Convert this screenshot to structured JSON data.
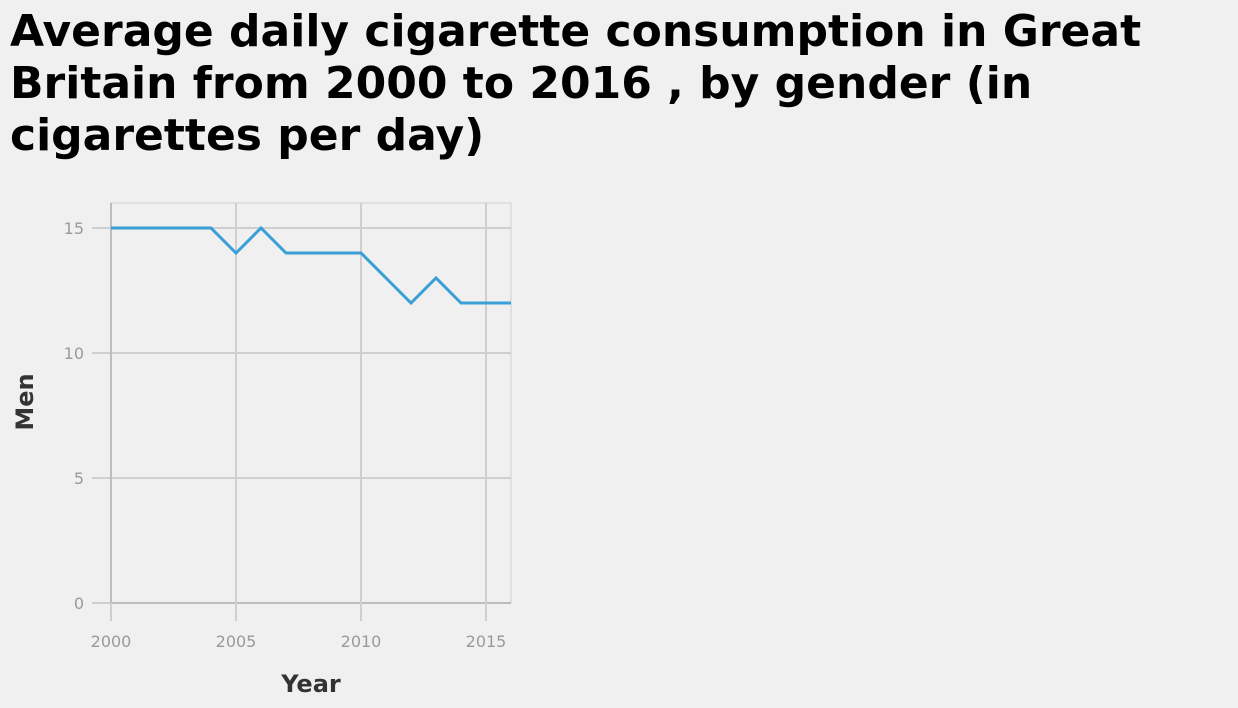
{
  "chart_data": {
    "type": "line",
    "title": "Average daily cigarette consumption in Great Britain from 2000 to 2016 , by gender (in cigarettes per day)",
    "xlabel": "Year",
    "ylabel": "Men",
    "xlim": [
      2000,
      2016
    ],
    "ylim": [
      0,
      16
    ],
    "x_ticks": [
      2000,
      2005,
      2010,
      2015
    ],
    "y_ticks": [
      0,
      5,
      10,
      15
    ],
    "grid": true,
    "series": [
      {
        "color": "#3a9fd6",
        "x": [
          2000,
          2001,
          2002,
          2003,
          2004,
          2005,
          2006,
          2007,
          2008,
          2009,
          2010,
          2011,
          2012,
          2013,
          2014,
          2015,
          2016
        ],
        "values": [
          15,
          15,
          15,
          15,
          15,
          14,
          15,
          14,
          14,
          14,
          14,
          13,
          12,
          13,
          12,
          12,
          12
        ]
      }
    ]
  }
}
